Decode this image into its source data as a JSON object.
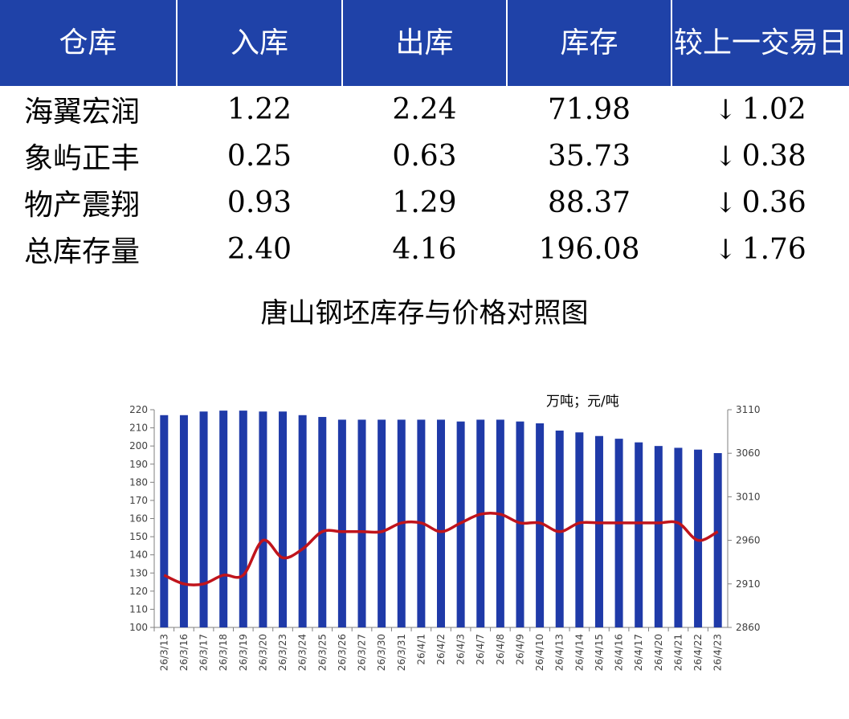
{
  "table": {
    "headers": [
      "仓库",
      "入库",
      "出库",
      "库存",
      "较上一交易日"
    ],
    "rows": [
      {
        "name": "海翼宏润",
        "in": "1.22",
        "out": "2.24",
        "stock": "71.98",
        "arrow": "↓",
        "change": "1.02"
      },
      {
        "name": "象屿正丰",
        "in": "0.25",
        "out": "0.63",
        "stock": "35.73",
        "arrow": "↓",
        "change": "0.38"
      },
      {
        "name": "物产震翔",
        "in": "0.93",
        "out": "1.29",
        "stock": "88.37",
        "arrow": "↓",
        "change": "0.36"
      },
      {
        "name": "总库存量",
        "in": "2.40",
        "out": "4.16",
        "stock": "196.08",
        "arrow": "↓",
        "change": "1.76"
      }
    ]
  },
  "colors": {
    "header_bg": "#1f42a8",
    "bar": "#1f3aa8",
    "line": "#c0141c",
    "down": "#138a13"
  },
  "chart_data": {
    "type": "bar",
    "title": "唐山钢坯库存与价格对照图",
    "unit_label": "万吨；元/吨",
    "categories": [
      "26/3/13",
      "26/3/16",
      "26/3/17",
      "26/3/18",
      "26/3/19",
      "26/3/20",
      "26/3/23",
      "26/3/24",
      "26/3/25",
      "26/3/26",
      "26/3/27",
      "26/3/30",
      "26/3/31",
      "26/4/1",
      "26/4/2",
      "26/4/3",
      "26/4/7",
      "26/4/8",
      "26/4/9",
      "26/4/10",
      "26/4/13",
      "26/4/14",
      "26/4/15",
      "26/4/16",
      "26/4/17",
      "26/4/20",
      "26/4/21",
      "26/4/22",
      "26/4/23"
    ],
    "series": [
      {
        "axis": "left",
        "type": "bar",
        "values": [
          217,
          217,
          219,
          219.5,
          219.5,
          219,
          219,
          217,
          216,
          214.5,
          214.5,
          214.5,
          214.5,
          214.5,
          214.5,
          213.5,
          214.5,
          214.5,
          213.5,
          212.5,
          208.5,
          207.5,
          205.5,
          204,
          202,
          200,
          199,
          198,
          196.08
        ]
      },
      {
        "axis": "right",
        "type": "line",
        "values": [
          2920,
          2910,
          2910,
          2920,
          2920,
          2960,
          2940,
          2950,
          2970,
          2970,
          2970,
          2970,
          2980,
          2980,
          2970,
          2980,
          2990,
          2990,
          2980,
          2980,
          2970,
          2980,
          2980,
          2980,
          2980,
          2980,
          2980,
          2960,
          2970
        ]
      }
    ],
    "ylim_left": [
      100,
      220
    ],
    "yticks_left": [
      100,
      110,
      120,
      130,
      140,
      150,
      160,
      170,
      180,
      190,
      200,
      210,
      220
    ],
    "ylim_right": [
      2860,
      3110
    ],
    "yticks_right": [
      2860,
      2910,
      2960,
      3010,
      3060,
      3110
    ],
    "grid": false
  }
}
